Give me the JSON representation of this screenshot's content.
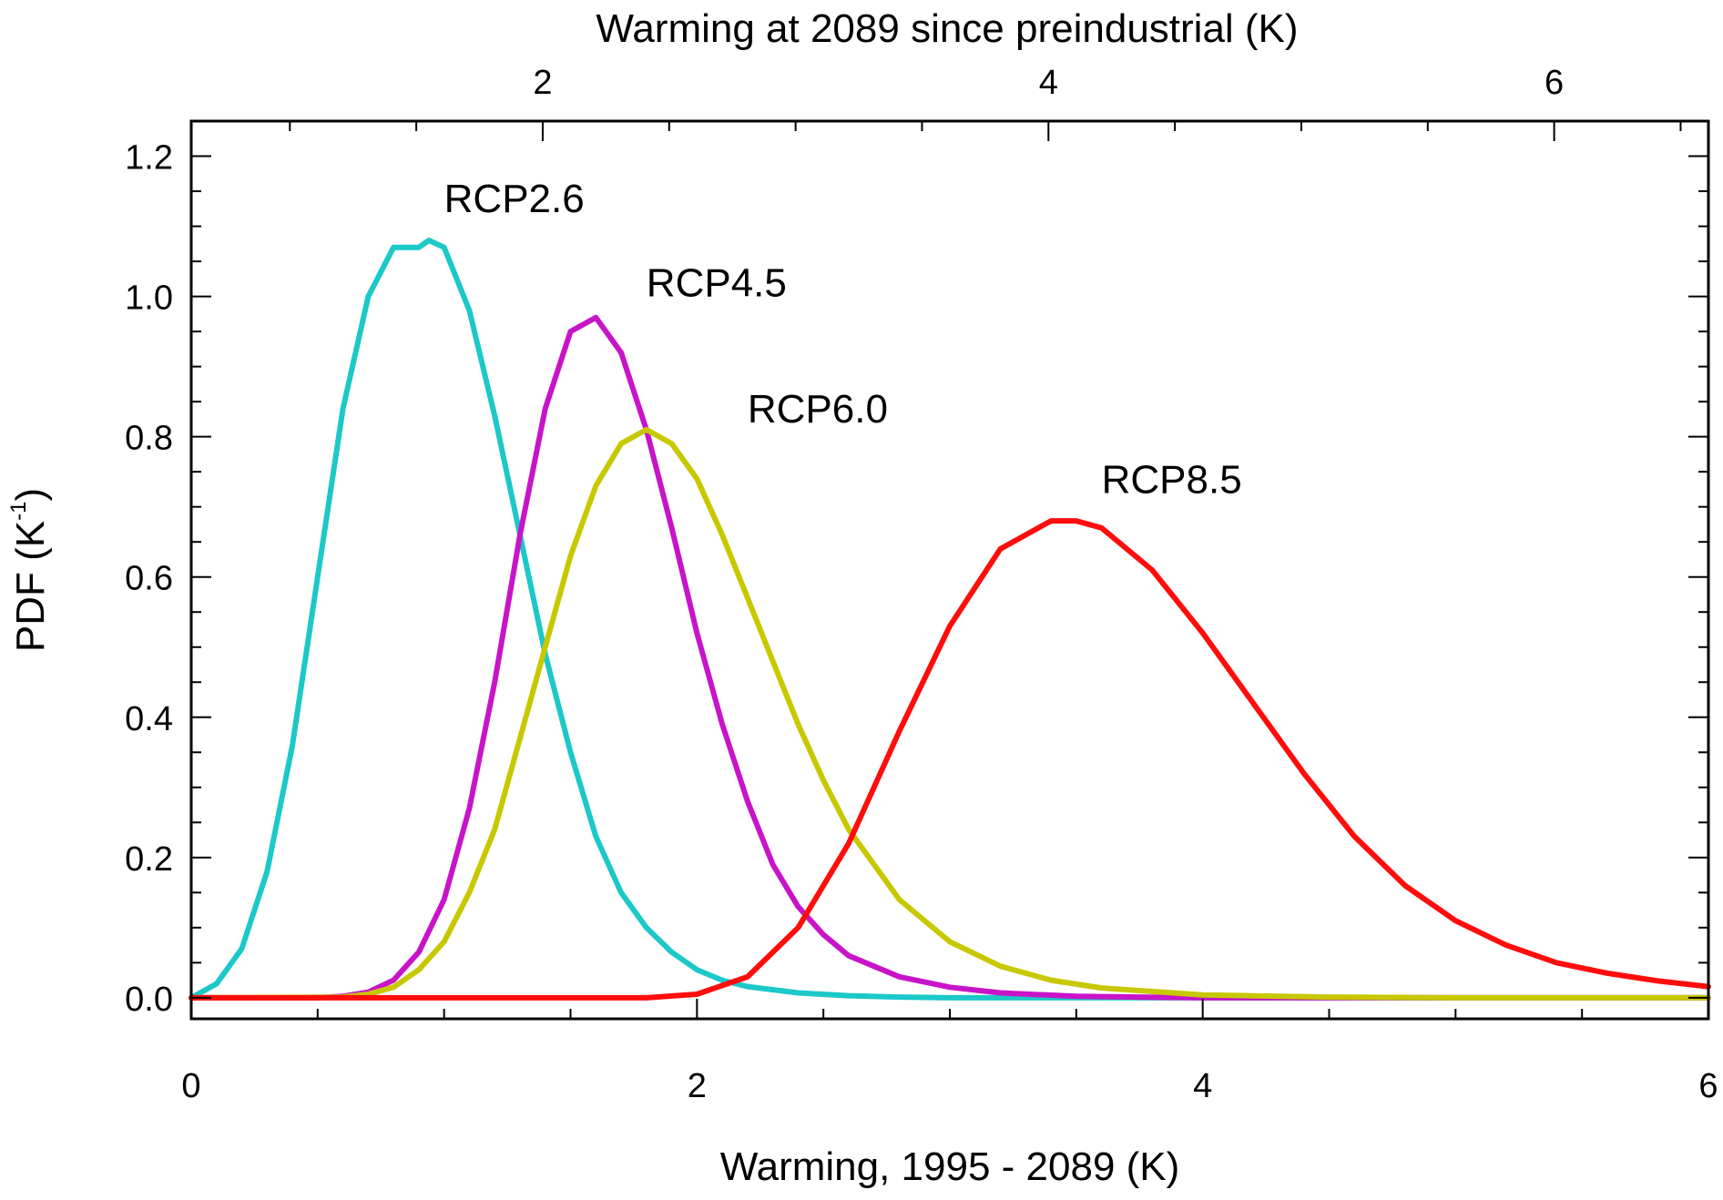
{
  "chart_data": {
    "type": "line",
    "xlabel": "Warming, 1995 - 2089 (K)",
    "x2label": "Warming at 2089 since preindustrial (K)",
    "ylabel": {
      "main": "PDF (K",
      "superscript": "-1",
      "close": ")"
    },
    "xlim": [
      0,
      6
    ],
    "ylim": [
      -0.03,
      1.25
    ],
    "x2_offset": 0.61,
    "xticks": [
      0,
      2,
      4,
      6
    ],
    "xtick_labels": [
      "0",
      "2",
      "4",
      "6"
    ],
    "x2ticks": [
      2,
      4,
      6
    ],
    "x2tick_labels": [
      "2",
      "4",
      "6"
    ],
    "yticks": [
      0.0,
      0.2,
      0.4,
      0.6,
      0.8,
      1.0,
      1.2
    ],
    "ytick_labels": [
      "0.0",
      "0.2",
      "0.4",
      "0.6",
      "0.8",
      "1.0",
      "1.2"
    ],
    "grid": false,
    "legend": "none",
    "series": [
      {
        "name": "RCP2.6",
        "color": "#1cc8c8",
        "label_at": [
          1.0,
          1.12
        ],
        "x": [
          0.0,
          0.1,
          0.2,
          0.3,
          0.4,
          0.5,
          0.6,
          0.7,
          0.8,
          0.9,
          0.94,
          1.0,
          1.1,
          1.2,
          1.3,
          1.4,
          1.5,
          1.6,
          1.7,
          1.8,
          1.9,
          2.0,
          2.1,
          2.2,
          2.4,
          2.6,
          2.8,
          3.0,
          3.4,
          4.0,
          5.0,
          6.0
        ],
        "y": [
          0.0,
          0.02,
          0.07,
          0.18,
          0.36,
          0.6,
          0.84,
          1.0,
          1.07,
          1.07,
          1.08,
          1.07,
          0.98,
          0.83,
          0.66,
          0.49,
          0.35,
          0.23,
          0.15,
          0.1,
          0.065,
          0.04,
          0.025,
          0.016,
          0.007,
          0.003,
          0.001,
          0.0,
          0.0,
          0.0,
          0.0,
          0.0
        ]
      },
      {
        "name": "RCP4.5",
        "color": "#c814c8",
        "label_at": [
          1.8,
          1.0
        ],
        "x": [
          0.0,
          0.5,
          0.6,
          0.7,
          0.8,
          0.9,
          1.0,
          1.1,
          1.2,
          1.3,
          1.4,
          1.5,
          1.6,
          1.7,
          1.8,
          1.9,
          2.0,
          2.1,
          2.2,
          2.3,
          2.4,
          2.5,
          2.6,
          2.8,
          3.0,
          3.2,
          3.5,
          4.0,
          5.0,
          6.0
        ],
        "y": [
          0.0,
          0.0,
          0.002,
          0.008,
          0.025,
          0.065,
          0.14,
          0.27,
          0.45,
          0.66,
          0.84,
          0.95,
          0.97,
          0.92,
          0.81,
          0.67,
          0.52,
          0.39,
          0.28,
          0.19,
          0.13,
          0.09,
          0.06,
          0.03,
          0.015,
          0.007,
          0.002,
          0.0,
          0.0,
          0.0
        ]
      },
      {
        "name": "RCP6.0",
        "color": "#c8c800",
        "label_at": [
          2.2,
          0.82
        ],
        "x": [
          0.0,
          0.6,
          0.7,
          0.8,
          0.9,
          1.0,
          1.1,
          1.2,
          1.3,
          1.4,
          1.5,
          1.6,
          1.7,
          1.8,
          1.9,
          2.0,
          2.1,
          2.2,
          2.3,
          2.4,
          2.5,
          2.6,
          2.8,
          3.0,
          3.2,
          3.4,
          3.6,
          4.0,
          4.5,
          5.0,
          6.0
        ],
        "y": [
          0.0,
          0.001,
          0.005,
          0.015,
          0.04,
          0.08,
          0.15,
          0.24,
          0.37,
          0.5,
          0.63,
          0.73,
          0.79,
          0.81,
          0.79,
          0.74,
          0.66,
          0.57,
          0.48,
          0.39,
          0.31,
          0.24,
          0.14,
          0.08,
          0.045,
          0.025,
          0.014,
          0.004,
          0.001,
          0.0,
          0.0
        ]
      },
      {
        "name": "RCP8.5",
        "color": "#ff0d0d",
        "label_at": [
          3.6,
          0.72
        ],
        "x": [
          0.0,
          1.8,
          2.0,
          2.2,
          2.4,
          2.6,
          2.8,
          3.0,
          3.2,
          3.4,
          3.5,
          3.6,
          3.8,
          4.0,
          4.2,
          4.4,
          4.6,
          4.8,
          5.0,
          5.2,
          5.4,
          5.6,
          5.8,
          6.0
        ],
        "y": [
          0.0,
          0.0,
          0.005,
          0.03,
          0.1,
          0.22,
          0.38,
          0.53,
          0.64,
          0.68,
          0.68,
          0.67,
          0.61,
          0.52,
          0.42,
          0.32,
          0.23,
          0.16,
          0.11,
          0.075,
          0.05,
          0.035,
          0.024,
          0.016
        ]
      }
    ]
  }
}
